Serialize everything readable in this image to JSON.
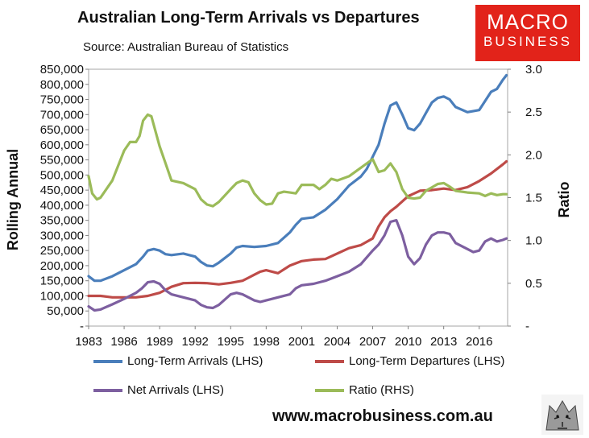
{
  "header": {
    "title": "Australian Long-Term Arrivals vs Departures",
    "subtitle": "Source: Australian Bureau of Statistics"
  },
  "logo": {
    "line1": "MACRO",
    "line2": "BUSINESS",
    "color": "#e2231a"
  },
  "footer": {
    "website": "www.macrobusiness.com.au"
  },
  "chart_data": {
    "type": "line",
    "ylabel": "Rolling Annual",
    "y2label": "Ratio",
    "ylim": [
      0,
      850000
    ],
    "y2lim": [
      0,
      3.0
    ],
    "xlim": [
      1983,
      2018.4
    ],
    "xticks": [
      "1983",
      "1986",
      "1989",
      "1992",
      "1995",
      "1998",
      "2001",
      "2004",
      "2007",
      "2010",
      "2013",
      "2016"
    ],
    "yticks": [
      "-",
      "50,000",
      "100,000",
      "150,000",
      "200,000",
      "250,000",
      "300,000",
      "350,000",
      "400,000",
      "450,000",
      "500,000",
      "550,000",
      "600,000",
      "650,000",
      "700,000",
      "750,000",
      "800,000",
      "850,000"
    ],
    "y2ticks": [
      "-",
      "0.5",
      "1.0",
      "1.5",
      "2.0",
      "2.5",
      "3.0"
    ],
    "grid": false,
    "legend_position": "bottom",
    "series": [
      {
        "name": "Long-Term Arrivals (LHS)",
        "axis": "left",
        "color": "#4a7ebb",
        "x": [
          1983.0,
          1983.5,
          1984.0,
          1985.0,
          1986.0,
          1987.0,
          1987.6,
          1988.0,
          1988.5,
          1989.0,
          1989.5,
          1990.0,
          1991.0,
          1992.0,
          1992.5,
          1993.0,
          1993.5,
          1994.0,
          1995.0,
          1995.5,
          1996.0,
          1997.0,
          1998.0,
          1999.0,
          2000.0,
          2000.5,
          2001.0,
          2002.0,
          2003.0,
          2004.0,
          2005.0,
          2006.0,
          2006.5,
          2007.0,
          2007.5,
          2008.0,
          2008.5,
          2009.0,
          2009.5,
          2010.0,
          2010.5,
          2011.0,
          2011.5,
          2012.0,
          2012.5,
          2013.0,
          2013.5,
          2014.0,
          2015.0,
          2016.0,
          2016.5,
          2017.0,
          2017.5,
          2018.0,
          2018.3
        ],
        "y": [
          165000,
          150000,
          150000,
          165000,
          185000,
          205000,
          230000,
          250000,
          255000,
          250000,
          238000,
          235000,
          240000,
          230000,
          212000,
          200000,
          198000,
          210000,
          240000,
          260000,
          265000,
          262000,
          265000,
          275000,
          310000,
          335000,
          355000,
          360000,
          385000,
          420000,
          465000,
          495000,
          520000,
          560000,
          600000,
          670000,
          730000,
          740000,
          700000,
          655000,
          648000,
          670000,
          705000,
          740000,
          755000,
          760000,
          750000,
          725000,
          708000,
          715000,
          745000,
          775000,
          785000,
          815000,
          830000
        ]
      },
      {
        "name": "Long-Term Departures (LHS)",
        "axis": "left",
        "color": "#be4b48",
        "x": [
          1983.0,
          1984.0,
          1985.0,
          1986.0,
          1987.0,
          1988.0,
          1988.5,
          1989.0,
          1989.5,
          1990.0,
          1991.0,
          1992.0,
          1993.0,
          1994.0,
          1995.0,
          1996.0,
          1996.5,
          1997.0,
          1997.5,
          1998.0,
          1999.0,
          2000.0,
          2001.0,
          2002.0,
          2003.0,
          2004.0,
          2005.0,
          2006.0,
          2007.0,
          2007.5,
          2008.0,
          2008.5,
          2009.0,
          2010.0,
          2011.0,
          2012.0,
          2013.0,
          2014.0,
          2015.0,
          2016.0,
          2017.0,
          2018.0,
          2018.3
        ],
        "y": [
          100000,
          100000,
          95000,
          95000,
          95000,
          100000,
          105000,
          110000,
          120000,
          130000,
          142000,
          143000,
          142000,
          138000,
          143000,
          150000,
          160000,
          170000,
          180000,
          185000,
          175000,
          200000,
          215000,
          220000,
          222000,
          240000,
          258000,
          268000,
          290000,
          330000,
          360000,
          380000,
          395000,
          430000,
          448000,
          450000,
          455000,
          450000,
          460000,
          480000,
          505000,
          535000,
          545000
        ]
      },
      {
        "name": "Net Arrivals (LHS)",
        "axis": "left",
        "color": "#7d5fa0",
        "x": [
          1983.0,
          1983.5,
          1984.0,
          1985.0,
          1986.0,
          1987.0,
          1987.5,
          1988.0,
          1988.5,
          1989.0,
          1989.5,
          1990.0,
          1991.0,
          1992.0,
          1992.5,
          1993.0,
          1993.5,
          1994.0,
          1995.0,
          1995.5,
          1996.0,
          1997.0,
          1997.5,
          1998.0,
          1999.0,
          2000.0,
          2000.5,
          2001.0,
          2002.0,
          2003.0,
          2004.0,
          2005.0,
          2006.0,
          2007.0,
          2007.5,
          2008.0,
          2008.5,
          2009.0,
          2009.5,
          2010.0,
          2010.5,
          2011.0,
          2011.5,
          2012.0,
          2012.5,
          2013.0,
          2013.5,
          2014.0,
          2015.0,
          2015.5,
          2016.0,
          2016.5,
          2017.0,
          2017.5,
          2018.0,
          2018.3
        ],
        "y": [
          65000,
          52000,
          55000,
          72000,
          90000,
          110000,
          125000,
          145000,
          148000,
          140000,
          118000,
          105000,
          95000,
          85000,
          70000,
          62000,
          60000,
          70000,
          105000,
          110000,
          105000,
          85000,
          80000,
          85000,
          95000,
          105000,
          125000,
          135000,
          140000,
          150000,
          165000,
          180000,
          205000,
          250000,
          270000,
          300000,
          345000,
          350000,
          300000,
          230000,
          205000,
          225000,
          270000,
          300000,
          310000,
          310000,
          305000,
          275000,
          255000,
          245000,
          250000,
          280000,
          290000,
          280000,
          285000,
          290000
        ]
      },
      {
        "name": "Ratio (RHS)",
        "axis": "right",
        "color": "#9bbb59",
        "x": [
          1983.0,
          1983.3,
          1983.7,
          1984.0,
          1985.0,
          1986.0,
          1986.5,
          1987.0,
          1987.3,
          1987.6,
          1988.0,
          1988.3,
          1989.0,
          1989.5,
          1990.0,
          1991.0,
          1992.0,
          1992.5,
          1993.0,
          1993.5,
          1994.0,
          1995.0,
          1995.5,
          1996.0,
          1996.5,
          1997.0,
          1997.5,
          1998.0,
          1998.5,
          1999.0,
          1999.5,
          2000.0,
          2000.5,
          2001.0,
          2002.0,
          2002.5,
          2003.0,
          2003.5,
          2004.0,
          2005.0,
          2006.0,
          2006.5,
          2007.0,
          2007.5,
          2008.0,
          2008.5,
          2009.0,
          2009.5,
          2010.0,
          2010.5,
          2011.0,
          2011.5,
          2012.0,
          2012.5,
          2013.0,
          2013.5,
          2014.0,
          2015.0,
          2016.0,
          2016.5,
          2017.0,
          2017.5,
          2018.0,
          2018.3
        ],
        "y": [
          1.75,
          1.55,
          1.48,
          1.5,
          1.7,
          2.05,
          2.15,
          2.15,
          2.22,
          2.4,
          2.47,
          2.45,
          2.1,
          1.9,
          1.7,
          1.67,
          1.6,
          1.48,
          1.42,
          1.4,
          1.45,
          1.6,
          1.67,
          1.7,
          1.68,
          1.55,
          1.47,
          1.42,
          1.43,
          1.55,
          1.57,
          1.56,
          1.55,
          1.65,
          1.65,
          1.6,
          1.65,
          1.72,
          1.7,
          1.75,
          1.85,
          1.9,
          1.95,
          1.8,
          1.82,
          1.9,
          1.8,
          1.6,
          1.5,
          1.49,
          1.5,
          1.58,
          1.62,
          1.66,
          1.67,
          1.63,
          1.58,
          1.56,
          1.55,
          1.52,
          1.55,
          1.53,
          1.54,
          1.54
        ]
      }
    ]
  }
}
